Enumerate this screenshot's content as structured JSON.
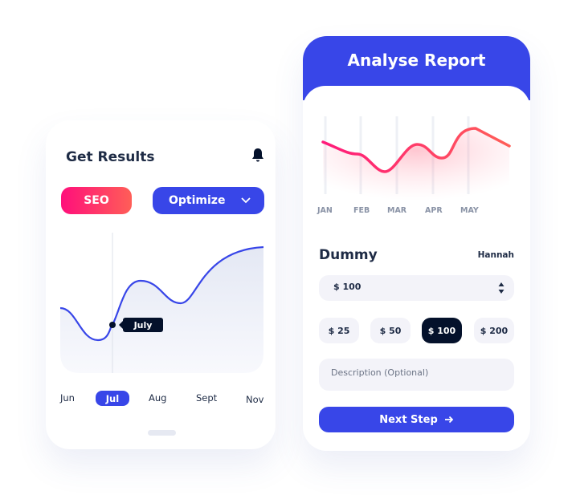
{
  "left_card": {
    "title": "Get Results",
    "icon": "bell-icon",
    "seo_label": "SEO",
    "optimize_label": "Optimize",
    "tooltip": "July",
    "months": [
      "Jun",
      "Jul",
      "Aug",
      "Sept",
      "Nov"
    ],
    "selected_month": "Jul"
  },
  "right_card": {
    "title": "Analyse Report",
    "months": [
      "JAN",
      "FEB",
      "MAR",
      "APR",
      "MAY"
    ],
    "name_label": "Dummy",
    "user": "Hannah",
    "amount_select": "$ 100",
    "amounts": [
      "$ 25",
      "$ 50",
      "$ 100",
      "$ 200"
    ],
    "selected_amount": "$ 100",
    "description_placeholder": "Description (Optional)",
    "next_label": "Next Step",
    "next_icon": "arrow-right-icon"
  },
  "colors": {
    "primary": "#3846e8",
    "dark": "#04112b",
    "gradient_start": "#ff0f7b",
    "gradient_end": "#ff5e57"
  }
}
